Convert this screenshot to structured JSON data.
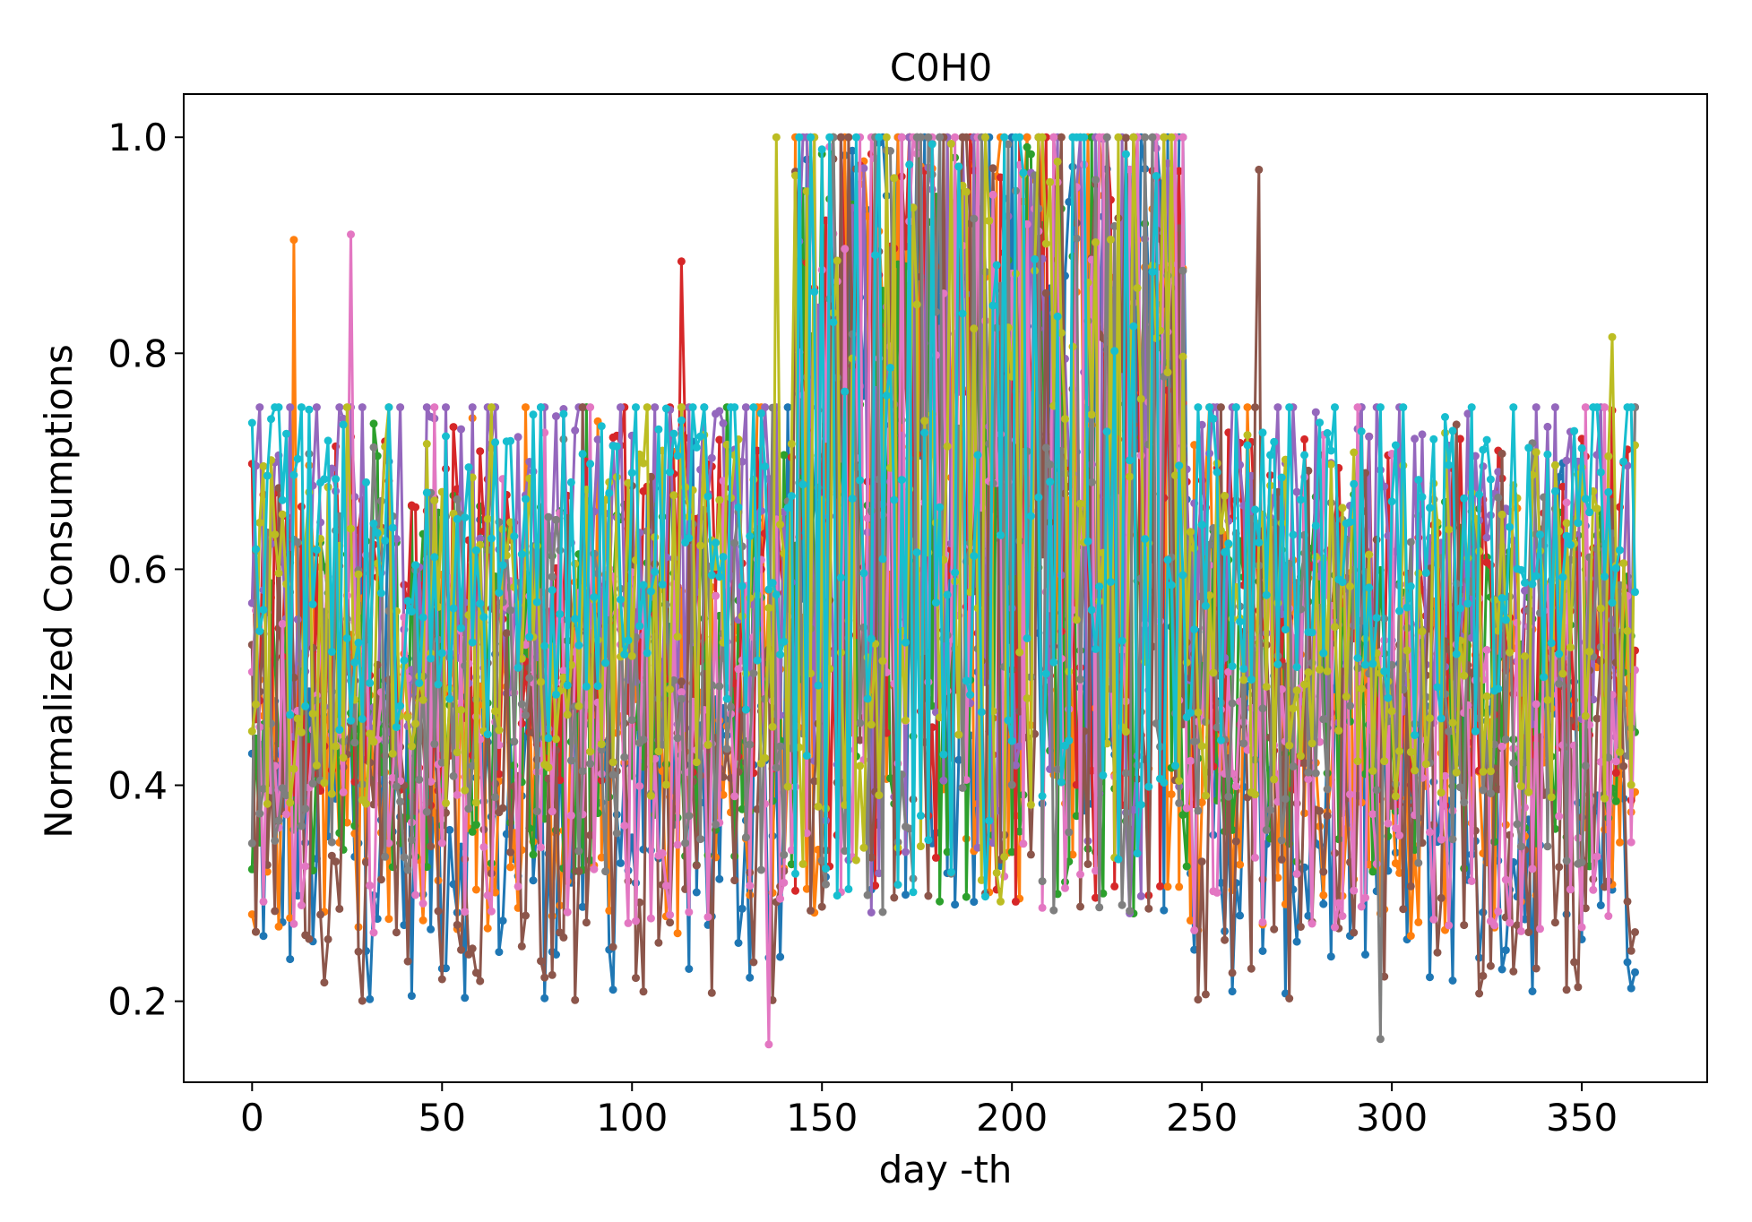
{
  "chart_data": {
    "type": "line",
    "title": "C0H0",
    "xlabel": "day -th",
    "ylabel": "Normalized Consumptions",
    "xlim": [
      -18,
      383
    ],
    "ylim": [
      0.125,
      1.04
    ],
    "xticks": [
      0,
      50,
      100,
      150,
      200,
      250,
      300,
      350
    ],
    "yticks": [
      0.2,
      0.4,
      0.6,
      0.8,
      1.0
    ],
    "ytick_labels": [
      "0.2",
      "0.4",
      "0.6",
      "0.8",
      "1.0"
    ],
    "grid": false,
    "legend": "none",
    "markers": true,
    "x_range": [
      0,
      364
    ],
    "series_count": 10,
    "series_colors": [
      "#1f77b4",
      "#ff7f0e",
      "#2ca02c",
      "#d62728",
      "#9467bd",
      "#8c564b",
      "#e377c2",
      "#7f7f7f",
      "#bcbd22",
      "#17becf"
    ],
    "series_level_profiles": {
      "note_units": "approximate typical value band per day range",
      "winter_spring": {
        "days": [
          0,
          142
        ],
        "low": 0.2,
        "high": 0.7
      },
      "summer": {
        "days": [
          143,
          245
        ],
        "low": 0.28,
        "high": 1.0
      },
      "autumn_winter": {
        "days": [
          246,
          364
        ],
        "low": 0.2,
        "high": 0.7
      }
    },
    "series_peaks": [
      {
        "x": 11,
        "y": 0.905
      },
      {
        "x": 26,
        "y": 0.91
      },
      {
        "x": 113,
        "y": 0.885
      },
      {
        "x": 138,
        "y": 1.0
      },
      {
        "x": 170,
        "y": 1.0
      },
      {
        "x": 265,
        "y": 0.97
      },
      {
        "x": 358,
        "y": 0.815
      },
      {
        "x": 136,
        "y": 0.16
      },
      {
        "x": 297,
        "y": 0.165
      }
    ]
  }
}
